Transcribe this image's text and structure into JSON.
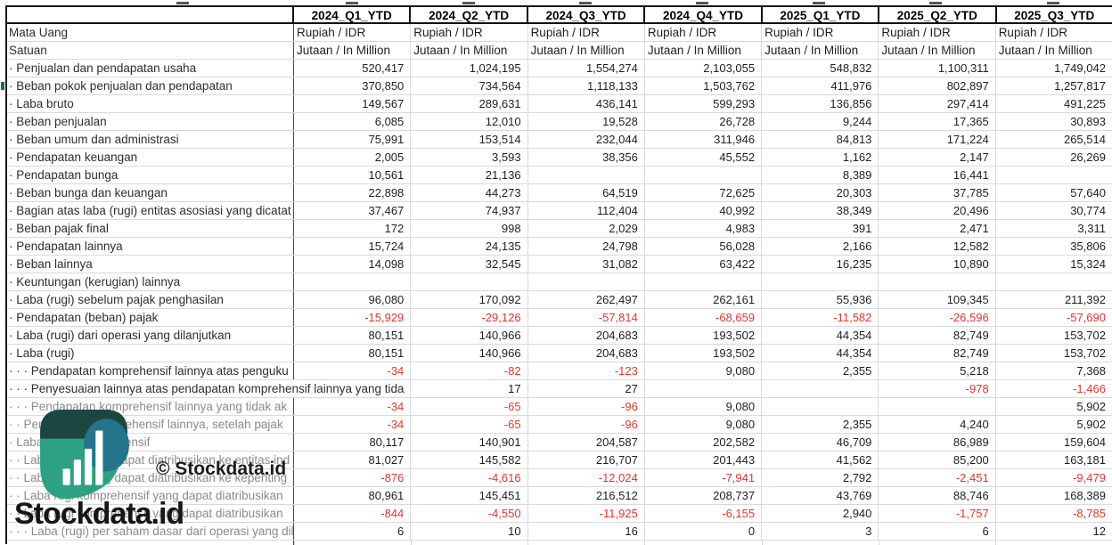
{
  "watermark": {
    "copyright": "© Stockdata.id",
    "brand": "Stockdata.id"
  },
  "colors": {
    "negative": "#e8352b",
    "muted_label": "#8b8b8b",
    "logo_dark": "#1b4740",
    "logo_teal": "#24748c",
    "logo_green": "#2da183",
    "left_mark_green": "#1e7145"
  },
  "table": {
    "columns": [
      "2024_Q1_YTD",
      "2024_Q2_YTD",
      "2024_Q3_YTD",
      "2024_Q4_YTD",
      "2025_Q1_YTD",
      "2025_Q2_YTD",
      "2025_Q3_YTD"
    ],
    "meta_rows": [
      {
        "label": "Mata Uang",
        "values": [
          "Rupiah / IDR",
          "Rupiah / IDR",
          "Rupiah / IDR",
          "Rupiah / IDR",
          "Rupiah / IDR",
          "Rupiah / IDR",
          "Rupiah / IDR"
        ]
      },
      {
        "label": "Satuan",
        "values": [
          "Jutaan / In Million",
          "Jutaan / In Million",
          "Jutaan / In Million",
          "Jutaan / In Million",
          "Jutaan / In Million",
          "Jutaan / In Million",
          "Jutaan / In Million"
        ]
      }
    ],
    "rows": [
      {
        "label": "· Penjualan dan pendapatan usaha",
        "muted": false,
        "overflow": false,
        "values": [
          "520,417",
          "1,024,195",
          "1,554,274",
          "2,103,055",
          "548,832",
          "1,100,311",
          "1,749,042"
        ]
      },
      {
        "label": "· Beban pokok penjualan dan pendapatan",
        "muted": false,
        "overflow": false,
        "values": [
          "370,850",
          "734,564",
          "1,118,133",
          "1,503,762",
          "411,976",
          "802,897",
          "1,257,817"
        ]
      },
      {
        "label": "· Laba bruto",
        "muted": false,
        "overflow": false,
        "values": [
          "149,567",
          "289,631",
          "436,141",
          "599,293",
          "136,856",
          "297,414",
          "491,225"
        ]
      },
      {
        "label": "· Beban penjualan",
        "muted": false,
        "overflow": false,
        "values": [
          "6,085",
          "12,010",
          "19,528",
          "26,728",
          "9,244",
          "17,365",
          "30,893"
        ]
      },
      {
        "label": "· Beban umum dan administrasi",
        "muted": false,
        "overflow": false,
        "values": [
          "75,991",
          "153,514",
          "232,044",
          "311,946",
          "84,813",
          "171,224",
          "265,514"
        ]
      },
      {
        "label": "· Pendapatan keuangan",
        "muted": false,
        "overflow": false,
        "values": [
          "2,005",
          "3,593",
          "38,356",
          "45,552",
          "1,162",
          "2,147",
          "26,269"
        ]
      },
      {
        "label": "· Pendapatan bunga",
        "muted": false,
        "overflow": false,
        "values": [
          "10,561",
          "21,136",
          "",
          "",
          "8,389",
          "16,441",
          ""
        ]
      },
      {
        "label": "· Beban bunga dan keuangan",
        "muted": false,
        "overflow": false,
        "values": [
          "22,898",
          "44,273",
          "64,519",
          "72,625",
          "20,303",
          "37,785",
          "57,640"
        ]
      },
      {
        "label": "· Bagian atas laba (rugi) entitas asosiasi yang dicatat",
        "muted": false,
        "overflow": false,
        "values": [
          "37,467",
          "74,937",
          "112,404",
          "40,992",
          "38,349",
          "20,496",
          "30,774"
        ]
      },
      {
        "label": "· Beban pajak final",
        "muted": false,
        "overflow": false,
        "values": [
          "172",
          "998",
          "2,029",
          "4,983",
          "391",
          "2,471",
          "3,311"
        ]
      },
      {
        "label": "· Pendapatan lainnya",
        "muted": false,
        "overflow": false,
        "values": [
          "15,724",
          "24,135",
          "24,798",
          "56,028",
          "2,166",
          "12,582",
          "35,806"
        ]
      },
      {
        "label": "· Beban lainnya",
        "muted": false,
        "overflow": false,
        "values": [
          "14,098",
          "32,545",
          "31,082",
          "63,422",
          "16,235",
          "10,890",
          "15,324"
        ]
      },
      {
        "label": "· Keuntungan (kerugian) lainnya",
        "muted": false,
        "overflow": false,
        "values": [
          "",
          "",
          "",
          "",
          "",
          "",
          ""
        ]
      },
      {
        "label": "· Laba (rugi) sebelum pajak penghasilan",
        "muted": false,
        "overflow": false,
        "values": [
          "96,080",
          "170,092",
          "262,497",
          "262,161",
          "55,936",
          "109,345",
          "211,392"
        ]
      },
      {
        "label": "· Pendapatan (beban) pajak",
        "muted": false,
        "overflow": false,
        "values": [
          "-15,929",
          "-29,126",
          "-57,814",
          "-68,659",
          "-11,582",
          "-26,596",
          "-57,690"
        ]
      },
      {
        "label": "· Laba (rugi) dari operasi yang dilanjutkan",
        "muted": false,
        "overflow": false,
        "values": [
          "80,151",
          "140,966",
          "204,683",
          "193,502",
          "44,354",
          "82,749",
          "153,702"
        ]
      },
      {
        "label": "· Laba (rugi)",
        "muted": false,
        "overflow": false,
        "values": [
          "80,151",
          "140,966",
          "204,683",
          "193,502",
          "44,354",
          "82,749",
          "153,702"
        ]
      },
      {
        "label": "· · · Pendapatan komprehensif lainnya atas penguku",
        "muted": false,
        "overflow": false,
        "values": [
          "-34",
          "-82",
          "-123",
          "9,080",
          "2,355",
          "5,218",
          "7,368"
        ]
      },
      {
        "label": "· · · Penyesuaian lainnya atas pendapatan komprehensif lainnya yang tida",
        "muted": false,
        "overflow": true,
        "values": [
          "",
          "17",
          "27",
          "",
          "",
          "-978",
          "-1,466"
        ]
      },
      {
        "label": "· · · Pendapatan komprehensif lainnya yang tidak ak",
        "muted": true,
        "overflow": false,
        "values": [
          "-34",
          "-65",
          "-96",
          "9,080",
          "",
          "",
          "5,902"
        ]
      },
      {
        "label": "· · Pendapatan komprehensif lainnya, setelah pajak",
        "muted": true,
        "overflow": false,
        "values": [
          "-34",
          "-65",
          "-96",
          "9,080",
          "2,355",
          "4,240",
          "5,902"
        ]
      },
      {
        "label": "· Laba (rugi) komprehensif",
        "muted": true,
        "overflow": false,
        "values": [
          "80,117",
          "140,901",
          "204,587",
          "202,582",
          "46,709",
          "86,989",
          "159,604"
        ]
      },
      {
        "label": "· · Laba (rugi) yang dapat diatribusikan ke entitas ind",
        "muted": true,
        "overflow": false,
        "values": [
          "81,027",
          "145,582",
          "216,707",
          "201,443",
          "41,562",
          "85,200",
          "163,181"
        ]
      },
      {
        "label": "· · Laba (rugi) yang dapat diatribusikan ke kepenting",
        "muted": true,
        "overflow": false,
        "values": [
          "-876",
          "-4,616",
          "-12,024",
          "-7,941",
          "2,792",
          "-2,451",
          "-9,479"
        ]
      },
      {
        "label": "· · Laba rugi komprehensif yang dapat diatribusikan",
        "muted": true,
        "overflow": false,
        "values": [
          "80,961",
          "145,451",
          "216,512",
          "208,737",
          "43,769",
          "88,746",
          "168,389"
        ]
      },
      {
        "label": "· · Laba rugi komprehensif yang dapat diatribusikan",
        "muted": true,
        "overflow": false,
        "values": [
          "-844",
          "-4,550",
          "-11,925",
          "-6,155",
          "2,940",
          "-1,757",
          "-8,785"
        ]
      },
      {
        "label": "· · · Laba (rugi) per saham dasar dari operasi yang dil",
        "muted": true,
        "overflow": false,
        "values": [
          "6",
          "10",
          "16",
          "0",
          "3",
          "6",
          "12"
        ]
      }
    ]
  }
}
